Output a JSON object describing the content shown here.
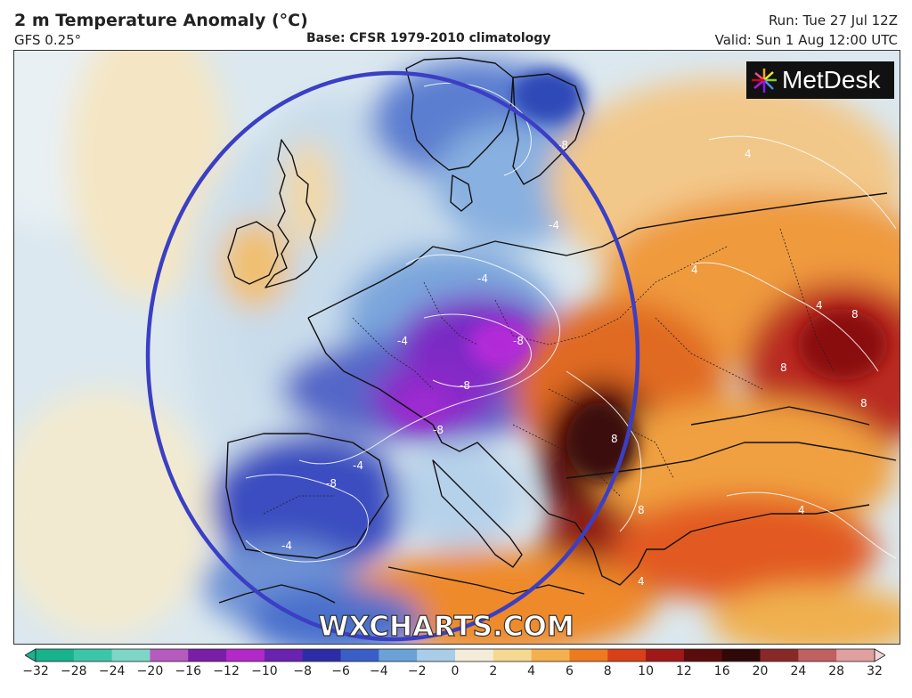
{
  "header": {
    "title": "2 m Temperature Anomaly (°C)",
    "model": "GFS 0.25°",
    "base": "Base: CFSR 1979-2010 climatology",
    "run": "Run: Tue 27 Jul 12Z",
    "valid": "Valid: Sun 1 Aug 12:00 UTC"
  },
  "map": {
    "logo_text": "MetDesk",
    "watermark": "WXCHARTS.COM",
    "circle_color": "#3a3fc4",
    "contour_labels": [
      "-8",
      "-8",
      "-8",
      "-8",
      "-8",
      "-4",
      "-4",
      "-4",
      "-4",
      "-4",
      "4",
      "4",
      "4",
      "4",
      "4",
      "8",
      "8",
      "8",
      "8",
      "8"
    ]
  },
  "legend": {
    "ticks": [
      "−32",
      "−28",
      "−24",
      "−20",
      "−16",
      "−12",
      "−10",
      "−8",
      "−6",
      "−4",
      "−2",
      "0",
      "2",
      "4",
      "6",
      "8",
      "10",
      "12",
      "16",
      "20",
      "24",
      "28",
      "32"
    ],
    "colors": [
      "#17b38c",
      "#3cc6a8",
      "#7ed6c6",
      "#b65ac0",
      "#7a1ea8",
      "#b228c8",
      "#6a22b0",
      "#2c2ca8",
      "#3a5ec8",
      "#6aa2d8",
      "#a9cde8",
      "#f2ecd8",
      "#f5d990",
      "#f5b04e",
      "#ee7a1f",
      "#d9401a",
      "#a01818",
      "#5a0c0c",
      "#300808",
      "#8a2828",
      "#c06060",
      "#e0a0a0",
      "#f2d4d4"
    ]
  }
}
